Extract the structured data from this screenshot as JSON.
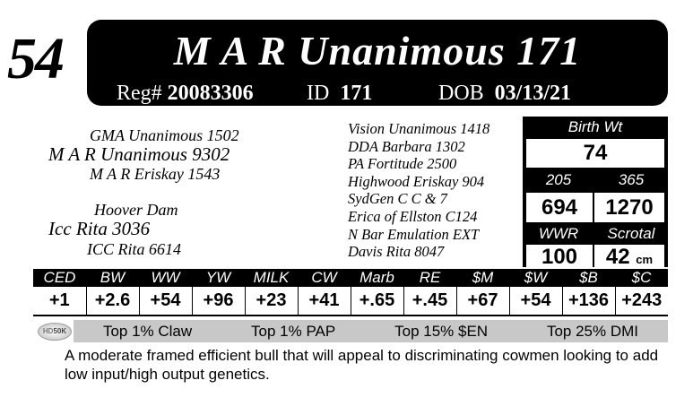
{
  "lot": "54",
  "name": "M A R Unanimous 171",
  "reg_label": "Reg#",
  "reg": "20083306",
  "id_label": "ID",
  "id": "171",
  "dob_label": "DOB",
  "dob": "03/13/21",
  "pedigree": {
    "sire_sire": "GMA Unanimous 1502",
    "sire": "M A R Unanimous 9302",
    "sire_dam": "M A R Eriskay 1543",
    "dam_sire": "Hoover Dam",
    "dam": "Icc Rita 3036",
    "dam_dam": "ICC Rita 6614",
    "grand": [
      "Vision Unanimous 1418",
      "DDA Barbara 1302",
      "PA Fortitude 2500",
      "Highwood Eriskay 904",
      "SydGen C C & 7",
      "Erica of Ellston C124",
      "N Bar Emulation EXT",
      "Davis Rita 8047"
    ]
  },
  "stats": {
    "birth_wt_label": "Birth Wt",
    "birth_wt": "74",
    "w205_label": "205",
    "w205": "694",
    "w365_label": "365",
    "w365": "1270",
    "wwr_label": "WWR",
    "wwr": "100",
    "scrotal_label": "Scrotal",
    "scrotal": "42",
    "scrotal_unit": "cm"
  },
  "epd": {
    "headers": [
      "CED",
      "BW",
      "WW",
      "YW",
      "MILK",
      "CW",
      "Marb",
      "RE",
      "$M",
      "$W",
      "$B",
      "$C"
    ],
    "values": [
      "+1",
      "+2.6",
      "+54",
      "+96",
      "+23",
      "+41",
      "+.65",
      "+.45",
      "+67",
      "+54",
      "+136",
      "+243"
    ]
  },
  "logo": "HD50K",
  "badges": [
    "Top 1% Claw",
    "Top 1% PAP",
    "Top 15% $EN",
    "Top 25% DMI"
  ],
  "description": "A moderate framed efficient bull that will appeal to discriminating cowmen looking to add low input/high output genetics."
}
